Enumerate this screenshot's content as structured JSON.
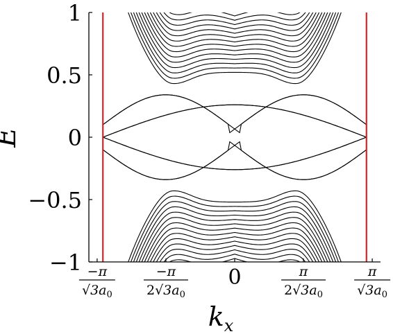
{
  "chart_data": {
    "type": "line",
    "title": "",
    "xlabel": "k",
    "xlabel_sub": "x",
    "ylabel": "E",
    "xlim": [
      -1.06,
      1.06
    ],
    "ylim": [
      -1,
      1
    ],
    "grid": false,
    "legend": "none",
    "yticks": [
      {
        "value": 1,
        "label": "1"
      },
      {
        "value": 0.5,
        "label": "0.5"
      },
      {
        "value": 0,
        "label": "0"
      },
      {
        "value": -0.5,
        "label": "−0.5"
      },
      {
        "value": -1,
        "label": "−1"
      }
    ],
    "xticks": [
      {
        "value": -1,
        "num": "−π",
        "den": "√3a",
        "den_coef": "",
        "den_sub": "0"
      },
      {
        "value": -0.5,
        "num": "−π",
        "den": "√3a",
        "den_coef": "2",
        "den_sub": "0"
      },
      {
        "value": 0,
        "plain": "0"
      },
      {
        "value": 0.5,
        "num": "π",
        "den": "√3a",
        "den_coef": "2",
        "den_sub": "0"
      },
      {
        "value": 1,
        "num": "π",
        "den": "√3a",
        "den_coef": "",
        "den_sub": "0"
      }
    ],
    "boundary_lines": {
      "x": [
        -0.958,
        0.958
      ],
      "color": "#d62728"
    },
    "bulk_bands": {
      "count_per_side": 40,
      "gap_center": 0.52,
      "gap_dip": 0.43,
      "dip_x": 0.44,
      "spacing": 0.03
    },
    "edge_states": {
      "crossing_points": [
        {
          "x": -0.958,
          "y": 0.1
        },
        {
          "x": -0.958,
          "y": -0.1
        },
        {
          "x": 0.958,
          "y": 0.1
        },
        {
          "x": 0.958,
          "y": -0.1
        }
      ],
      "turning_points": [
        {
          "x": -0.5,
          "y": 0.34
        },
        {
          "x": 0.5,
          "y": 0.34
        },
        {
          "x": -0.5,
          "y": -0.34
        },
        {
          "x": 0.5,
          "y": -0.34
        }
      ]
    },
    "colors": {
      "bands": "#000000",
      "boundary": "#d62728"
    }
  }
}
